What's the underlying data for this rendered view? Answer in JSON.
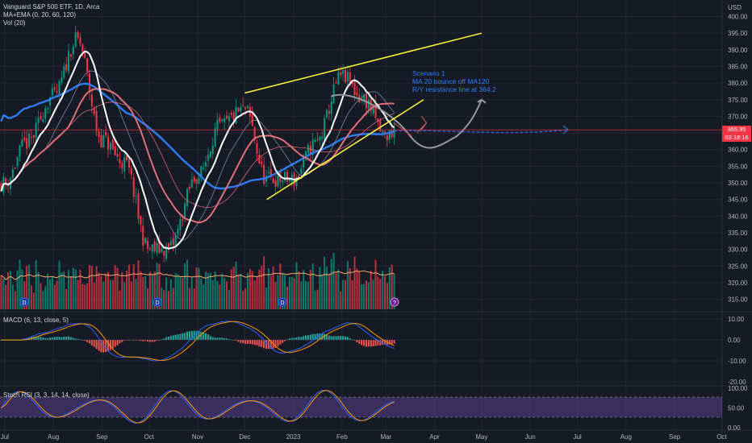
{
  "header": {
    "symbol_title": "Vanguard S&P 500 ETF, 1D, Arca",
    "indicator_ma": "MA+EMA (0, 20, 60, 120)",
    "indicator_vol": "Vol (20)",
    "macd_label": "MACD (6, 13, close, 5)",
    "stoch_label": "Stoch RSI (3, 3, 14, 14, close)"
  },
  "price_axis": {
    "currency": "USD",
    "ticks": [
      "400.00",
      "395.00",
      "390.00",
      "385.00",
      "380.00",
      "375.00",
      "370.00",
      "365.00",
      "360.00",
      "355.00",
      "350.00",
      "345.00",
      "340.00",
      "335.00",
      "330.00",
      "325.00",
      "320.00",
      "315.00"
    ],
    "current_price": "365.95",
    "countdown": "03:18:16"
  },
  "macd_axis": {
    "ticks": [
      "10.00",
      "0.00",
      "-10.00",
      "-20.00"
    ]
  },
  "stoch_axis": {
    "ticks": [
      "100.00",
      "50.00",
      "0.00"
    ]
  },
  "time_axis": {
    "labels": [
      "Jul",
      "Aug",
      "Sep",
      "Oct",
      "Nov",
      "Dec",
      "2023",
      "Feb",
      "Mar",
      "Apr",
      "May",
      "Jun",
      "Jul",
      "Aug",
      "Sep",
      "Oct"
    ]
  },
  "annotation": {
    "line1": "Scenario 1",
    "line2": "MA 20 bounce off MA120",
    "line3": "R/Y resistance line at 364.2"
  },
  "colors": {
    "background": "#161a25",
    "up": "#089981",
    "down": "#f23645",
    "channel": "#ffff3b",
    "ma120": "#2e7cf6",
    "white_line": "#ffffff",
    "annotation": "#2e7cf6",
    "stoch_band": "#7e57c2"
  },
  "chart_data": [
    {
      "type": "line",
      "title": "Vanguard S&P 500 ETF, 1D, Arca",
      "x_unit": "date",
      "x": [
        "2022-07-01",
        "2022-07-15",
        "2022-08-01",
        "2022-08-16",
        "2022-09-01",
        "2022-09-15",
        "2022-10-01",
        "2022-10-13",
        "2022-11-01",
        "2022-11-15",
        "2022-12-01",
        "2022-12-15",
        "2023-01-01",
        "2023-01-15",
        "2023-02-01",
        "2023-02-15",
        "2023-03-01",
        "2023-03-07"
      ],
      "series": [
        {
          "name": "close",
          "values": [
            350,
            362,
            376,
            393,
            363,
            356,
            330,
            330,
            352,
            367,
            372,
            351,
            351,
            362,
            382,
            375,
            364,
            366
          ]
        }
      ],
      "ylim": [
        312,
        404
      ],
      "annotations": {
        "channel_upper": [
          {
            "x": "2022-12-01",
            "y": 377
          },
          {
            "x": "2023-05-01",
            "y": 395
          }
        ],
        "channel_lower": [
          {
            "x": "2022-12-15",
            "y": 345
          },
          {
            "x": "2023-03-25",
            "y": 375
          }
        ],
        "horizontal_line_y": 365.95
      }
    },
    {
      "type": "bar",
      "title": "Vol (20)",
      "note": "volume histogram, relative scale"
    },
    {
      "type": "line",
      "title": "MACD (6, 13, close, 5)",
      "ylim": [
        -22,
        12
      ]
    },
    {
      "type": "line",
      "title": "Stoch RSI (3, 3, 14, 14, close)",
      "ylim": [
        0,
        100
      ]
    }
  ]
}
